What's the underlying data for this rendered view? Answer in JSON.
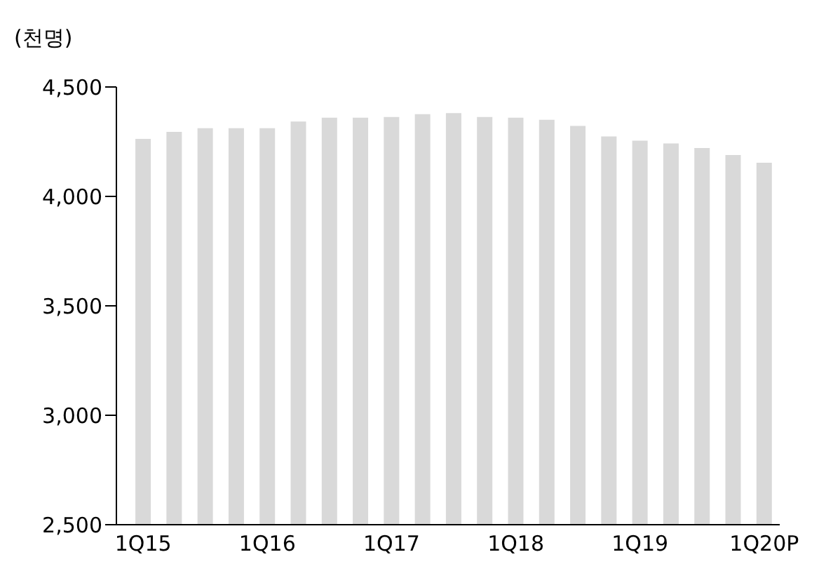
{
  "chart_data": {
    "type": "bar",
    "ylabel": "(천명)",
    "categories": [
      "1Q15",
      null,
      null,
      null,
      "1Q16",
      null,
      null,
      null,
      "1Q17",
      null,
      null,
      null,
      "1Q18",
      null,
      null,
      null,
      "1Q19",
      null,
      null,
      null,
      "1Q20P"
    ],
    "values": [
      4263,
      4295,
      4312,
      4312,
      4312,
      4342,
      4360,
      4360,
      4363,
      4376,
      4381,
      4363,
      4360,
      4350,
      4322,
      4274,
      4255,
      4242,
      4221,
      4189,
      4154
    ],
    "color": "#d9d9d9",
    "ylim": [
      2500,
      4500
    ],
    "yticks": [
      {
        "value": 2500,
        "label": "2,500"
      },
      {
        "value": 3000,
        "label": "3,000"
      },
      {
        "value": 3500,
        "label": "3,500"
      },
      {
        "value": 4000,
        "label": "4,000"
      },
      {
        "value": 4500,
        "label": "4,500"
      }
    ],
    "grid": false,
    "legend": false
  }
}
